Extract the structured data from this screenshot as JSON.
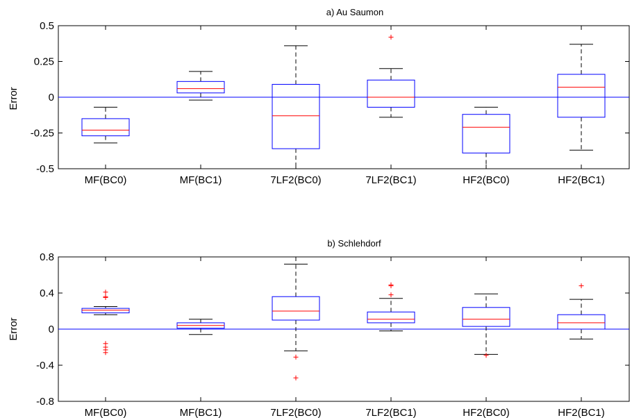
{
  "chart_data": [
    {
      "type": "boxplot",
      "title": "a) Au Saumon",
      "ylabel": "Error",
      "xlabel": "",
      "ylim": [
        -0.5,
        0.5
      ],
      "yticks": [
        -0.5,
        -0.25,
        0,
        0.25,
        0.5
      ],
      "ytick_labels": [
        "-0.5",
        "-0.25",
        "0",
        "0.25",
        "0.5"
      ],
      "zero_line": 0,
      "grid": false,
      "colors": {
        "box": "#0000ff",
        "median": "#ff0000",
        "whisker": "#000000",
        "outlier": "#ff0000",
        "zero_line": "#0000ff"
      },
      "categories": [
        "MF(BC0)",
        "MF(BC1)",
        "7LF2(BC0)",
        "7LF2(BC1)",
        "HF2(BC0)",
        "HF2(BC1)"
      ],
      "boxes": [
        {
          "category": "MF(BC0)",
          "whisker_low": -0.32,
          "q1": -0.27,
          "median": -0.23,
          "q3": -0.15,
          "whisker_high": -0.07,
          "outliers": []
        },
        {
          "category": "MF(BC1)",
          "whisker_low": -0.02,
          "q1": 0.03,
          "median": 0.06,
          "q3": 0.11,
          "whisker_high": 0.18,
          "outliers": []
        },
        {
          "category": "7LF2(BC0)",
          "whisker_low": -0.5,
          "q1": -0.36,
          "median": -0.13,
          "q3": 0.09,
          "whisker_high": 0.36,
          "outliers": []
        },
        {
          "category": "7LF2(BC1)",
          "whisker_low": -0.14,
          "q1": -0.07,
          "median": 0.0,
          "q3": 0.12,
          "whisker_high": 0.2,
          "outliers": [
            0.42
          ]
        },
        {
          "category": "HF2(BC0)",
          "whisker_low": -0.5,
          "q1": -0.39,
          "median": -0.21,
          "q3": -0.12,
          "whisker_high": -0.07,
          "outliers": []
        },
        {
          "category": "HF2(BC1)",
          "whisker_low": -0.37,
          "q1": -0.14,
          "median": 0.07,
          "q3": 0.16,
          "whisker_high": 0.37,
          "outliers": []
        }
      ]
    },
    {
      "type": "boxplot",
      "title": "b) Schlehdorf",
      "ylabel": "Error",
      "xlabel": "",
      "ylim": [
        -0.8,
        0.8
      ],
      "yticks": [
        -0.8,
        -0.4,
        0,
        0.4,
        0.8
      ],
      "ytick_labels": [
        "-0.8",
        "-0.4",
        "0",
        "0.4",
        "0.8"
      ],
      "zero_line": 0,
      "grid": false,
      "colors": {
        "box": "#0000ff",
        "median": "#ff0000",
        "whisker": "#000000",
        "outlier": "#ff0000",
        "zero_line": "#0000ff"
      },
      "categories": [
        "MF(BC0)",
        "MF(BC1)",
        "7LF2(BC0)",
        "7LF2(BC1)",
        "HF2(BC0)",
        "HF2(BC1)"
      ],
      "boxes": [
        {
          "category": "MF(BC0)",
          "whisker_low": 0.16,
          "q1": 0.18,
          "median": 0.21,
          "q3": 0.23,
          "whisker_high": 0.25,
          "outliers": [
            0.41,
            0.36,
            0.35,
            -0.16,
            -0.2,
            -0.23,
            -0.26
          ]
        },
        {
          "category": "MF(BC1)",
          "whisker_low": -0.06,
          "q1": 0.01,
          "median": 0.04,
          "q3": 0.07,
          "whisker_high": 0.11,
          "outliers": []
        },
        {
          "category": "7LF2(BC0)",
          "whisker_low": -0.24,
          "q1": 0.1,
          "median": 0.2,
          "q3": 0.36,
          "whisker_high": 0.72,
          "outliers": [
            -0.31,
            -0.54
          ]
        },
        {
          "category": "7LF2(BC1)",
          "whisker_low": -0.02,
          "q1": 0.07,
          "median": 0.11,
          "q3": 0.19,
          "whisker_high": 0.34,
          "outliers": [
            0.49,
            0.48,
            0.38
          ]
        },
        {
          "category": "HF2(BC0)",
          "whisker_low": -0.28,
          "q1": 0.03,
          "median": 0.11,
          "q3": 0.24,
          "whisker_high": 0.39,
          "outliers": [
            -0.29
          ]
        },
        {
          "category": "HF2(BC1)",
          "whisker_low": -0.11,
          "q1": 0.0,
          "median": 0.07,
          "q3": 0.16,
          "whisker_high": 0.33,
          "outliers": [
            0.48
          ]
        }
      ]
    }
  ]
}
